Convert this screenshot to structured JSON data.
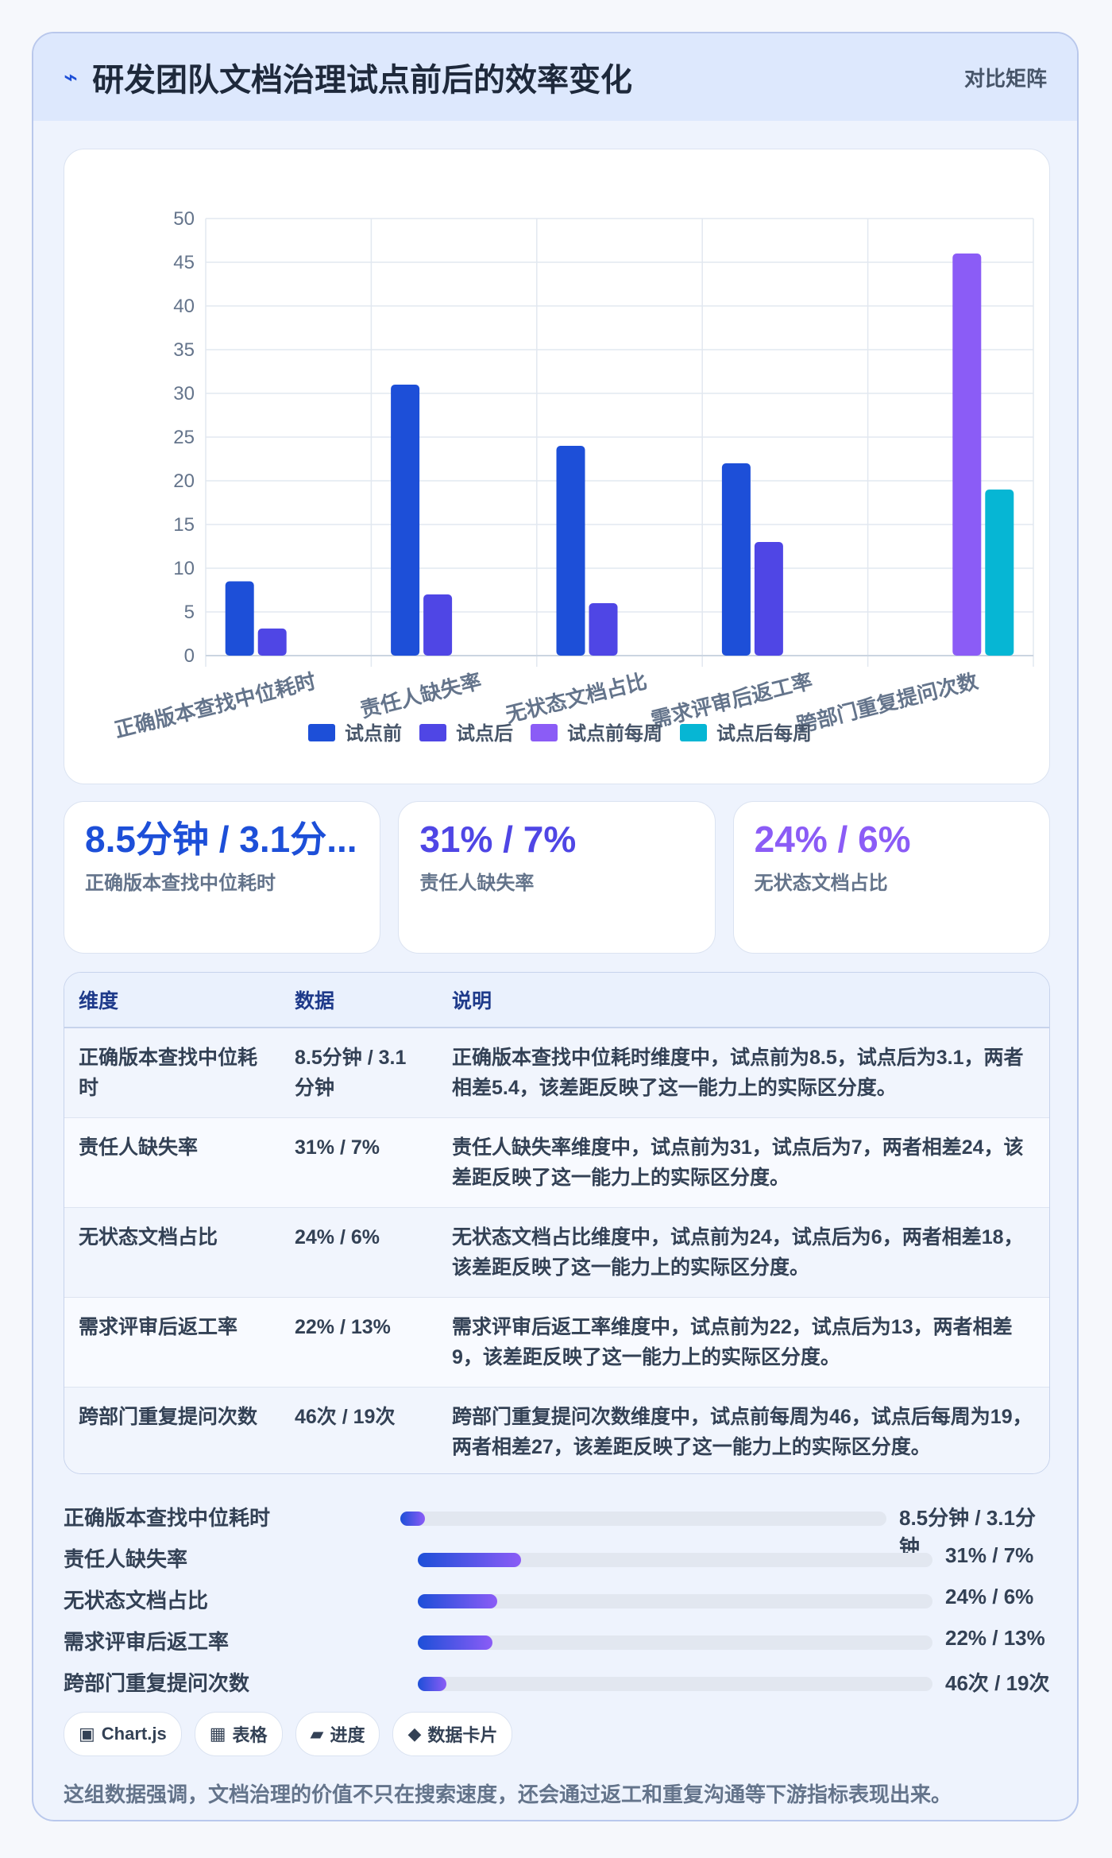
{
  "header": {
    "icon": "bolt-icon",
    "title": "研发团队文档治理试点前后的效率变化",
    "tag": "对比矩阵"
  },
  "chart_data": {
    "type": "bar",
    "categories": [
      "正确版本查找中位耗时",
      "责任人缺失率",
      "无状态文档占比",
      "需求评审后返工率",
      "跨部门重复提问次数"
    ],
    "series": [
      {
        "name": "试点前",
        "color": "#1d4fd8",
        "values": [
          8.5,
          31,
          24,
          22,
          null
        ]
      },
      {
        "name": "试点后",
        "color": "#4f46e5",
        "values": [
          3.1,
          7,
          6,
          13,
          null
        ]
      },
      {
        "name": "试点前每周",
        "color": "#8b5cf6",
        "values": [
          null,
          null,
          null,
          null,
          46
        ]
      },
      {
        "name": "试点后每周",
        "color": "#06b6d4",
        "values": [
          null,
          null,
          null,
          null,
          19
        ]
      }
    ],
    "ylim": [
      0,
      50
    ],
    "yticks": [
      0,
      5,
      10,
      15,
      20,
      25,
      30,
      35,
      40,
      45,
      50
    ],
    "grid": true,
    "legend": "bottom"
  },
  "stats": [
    {
      "value": "8.5分钟 / 3.1分...",
      "label": "正确版本查找中位耗时",
      "color": "#1d4fd8"
    },
    {
      "value": "31% / 7%",
      "label": "责任人缺失率",
      "color": "#4f46e5"
    },
    {
      "value": "24% / 6%",
      "label": "无状态文档占比",
      "color": "#8b5cf6"
    }
  ],
  "table": {
    "headers": [
      "维度",
      "数据",
      "说明"
    ],
    "rows": [
      [
        "正确版本查找中位耗时",
        "8.5分钟 / 3.1分钟",
        "正确版本查找中位耗时维度中，试点前为8.5，试点后为3.1，两者相差5.4，该差距反映了这一能力上的实际区分度。"
      ],
      [
        "责任人缺失率",
        "31% / 7%",
        "责任人缺失率维度中，试点前为31，试点后为7，两者相差24，该差距反映了这一能力上的实际区分度。"
      ],
      [
        "无状态文档占比",
        "24% / 6%",
        "无状态文档占比维度中，试点前为24，试点后为6，两者相差18，该差距反映了这一能力上的实际区分度。"
      ],
      [
        "需求评审后返工率",
        "22% / 13%",
        "需求评审后返工率维度中，试点前为22，试点后为13，两者相差9，该差距反映了这一能力上的实际区分度。"
      ],
      [
        "跨部门重复提问次数",
        "46次 / 19次",
        "跨部门重复提问次数维度中，试点前每周为46，试点后每周为19，两者相差27，该差距反映了这一能力上的实际区分度。"
      ]
    ]
  },
  "progress": [
    {
      "label": "正确版本查找中位耗时",
      "value": "8.5分钟 / 3.1分钟",
      "fraction": 0.05
    },
    {
      "label": "责任人缺失率",
      "value": "31% / 7%",
      "fraction": 0.2
    },
    {
      "label": "无状态文档占比",
      "value": "24% / 6%",
      "fraction": 0.155
    },
    {
      "label": "需求评审后返工率",
      "value": "22% / 13%",
      "fraction": 0.145
    },
    {
      "label": "跨部门重复提问次数",
      "value": "46次 / 19次",
      "fraction": 0.055
    }
  ],
  "tags": [
    {
      "icon": "square-icon",
      "glyph": "▣",
      "label": "Chart.js"
    },
    {
      "icon": "grid-icon",
      "glyph": "▦",
      "label": "表格"
    },
    {
      "icon": "parallelogram-icon",
      "glyph": "▰",
      "label": "进度"
    },
    {
      "icon": "diamond-icon",
      "glyph": "◆",
      "label": "数据卡片"
    }
  ],
  "footnote": "这组数据强调，文档治理的价值不只在搜索速度，还会通过返工和重复沟通等下游指标表现出来。"
}
